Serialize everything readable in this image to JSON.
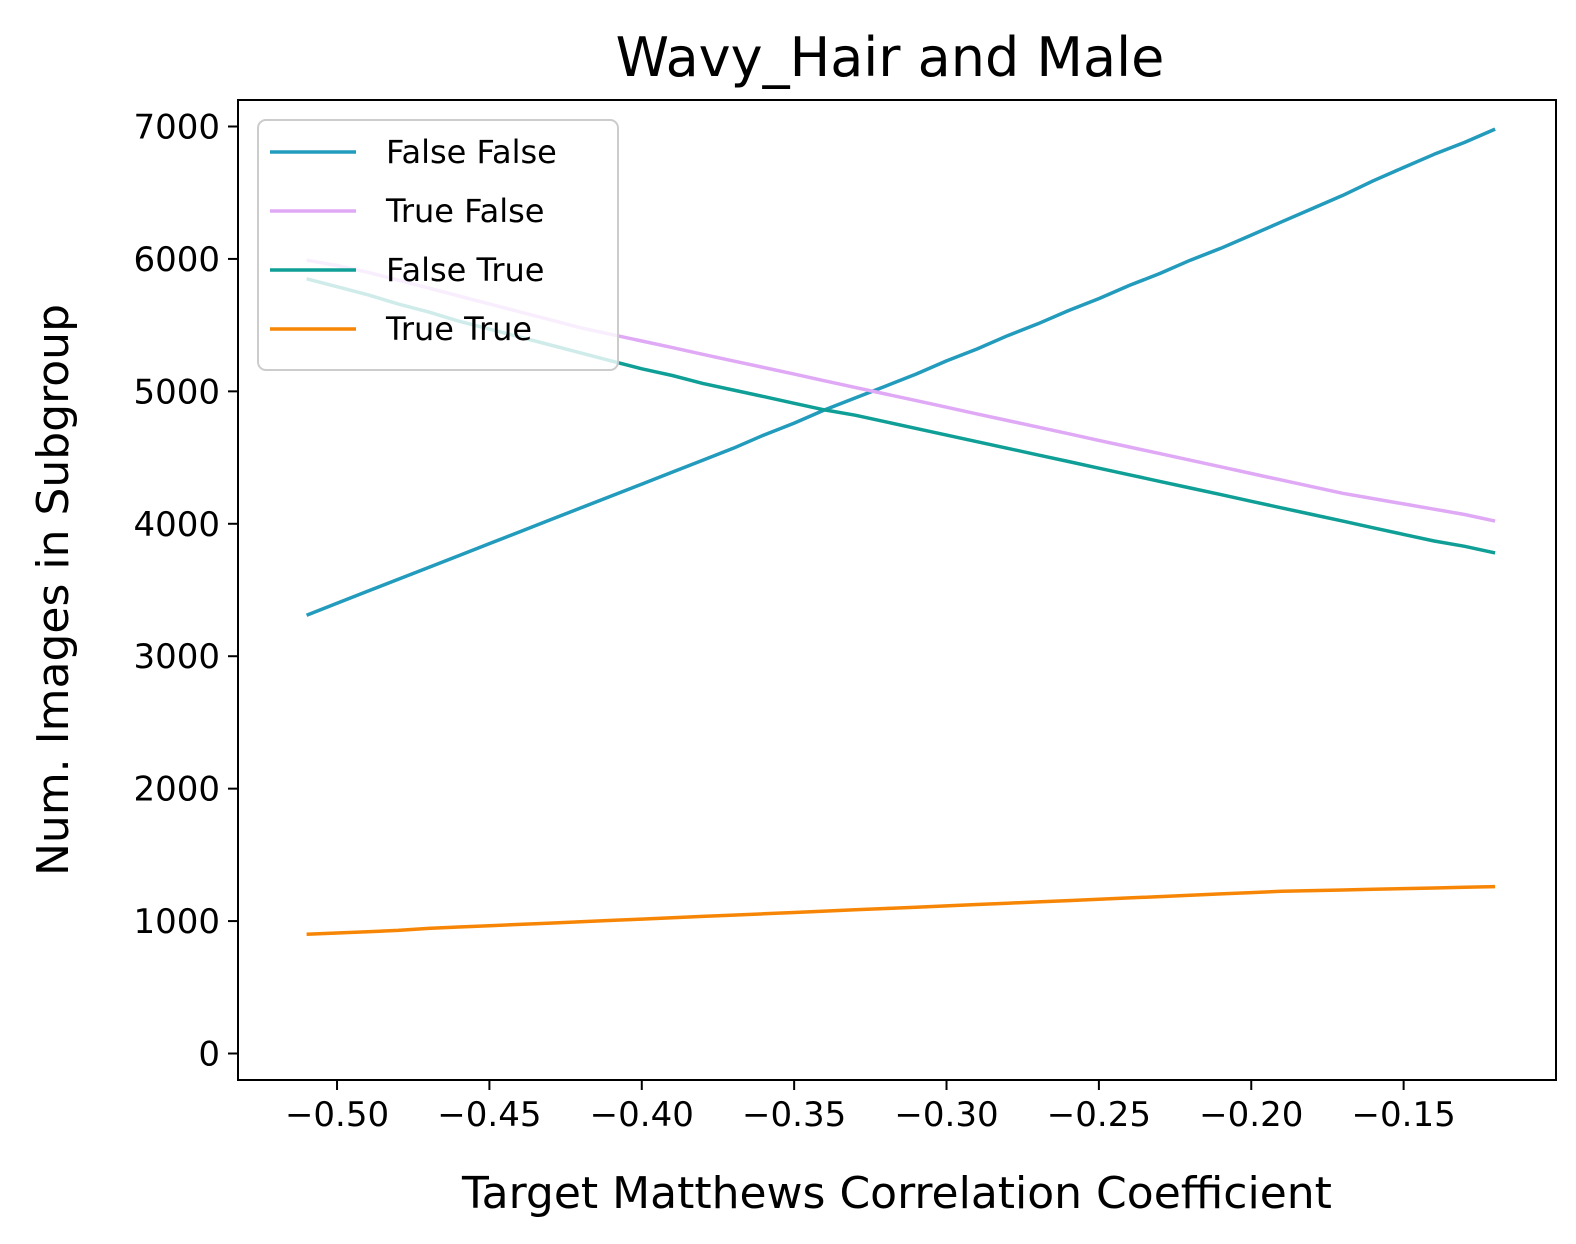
{
  "chart_data": {
    "type": "line",
    "title": "Wavy_Hair and Male",
    "xlabel": "Target Matthews Correlation Coefficient",
    "ylabel": "Num. Images in Subgroup",
    "xlim": [
      -0.5325,
      -0.1
    ],
    "ylim": [
      -200,
      7200
    ],
    "xticks": [
      -0.5,
      -0.45,
      -0.4,
      -0.35,
      -0.3,
      -0.25,
      -0.2,
      -0.15
    ],
    "xtick_labels": [
      "−0.50",
      "−0.45",
      "−0.40",
      "−0.35",
      "−0.30",
      "−0.25",
      "−0.20",
      "−0.15"
    ],
    "yticks": [
      0,
      1000,
      2000,
      3000,
      4000,
      5000,
      6000,
      7000
    ],
    "ytick_labels": [
      "0",
      "1000",
      "2000",
      "3000",
      "4000",
      "5000",
      "6000",
      "7000"
    ],
    "grid": false,
    "legend_position": "upper-left",
    "x": [
      -0.51,
      -0.5,
      -0.49,
      -0.48,
      -0.47,
      -0.46,
      -0.45,
      -0.44,
      -0.43,
      -0.42,
      -0.41,
      -0.4,
      -0.39,
      -0.38,
      -0.37,
      -0.36,
      -0.35,
      -0.34,
      -0.33,
      -0.32,
      -0.31,
      -0.3,
      -0.29,
      -0.28,
      -0.27,
      -0.26,
      -0.25,
      -0.24,
      -0.23,
      -0.22,
      -0.21,
      -0.2,
      -0.19,
      -0.18,
      -0.17,
      -0.16,
      -0.15,
      -0.14,
      -0.13,
      -0.12
    ],
    "series": [
      {
        "name": "False False",
        "color": "#229bbd",
        "values": [
          3310,
          3400,
          3490,
          3580,
          3670,
          3760,
          3850,
          3940,
          4030,
          4120,
          4210,
          4300,
          4390,
          4480,
          4570,
          4670,
          4760,
          4860,
          4950,
          5040,
          5130,
          5230,
          5320,
          5420,
          5510,
          5610,
          5700,
          5800,
          5890,
          5990,
          6080,
          6180,
          6280,
          6380,
          6480,
          6590,
          6690,
          6790,
          6880,
          6980
        ]
      },
      {
        "name": "True False",
        "color": "#e0a9f5",
        "values": [
          5990,
          5950,
          5900,
          5840,
          5780,
          5720,
          5660,
          5600,
          5540,
          5480,
          5430,
          5380,
          5330,
          5280,
          5230,
          5180,
          5130,
          5080,
          5030,
          4980,
          4930,
          4880,
          4830,
          4780,
          4730,
          4680,
          4630,
          4580,
          4530,
          4480,
          4430,
          4380,
          4330,
          4280,
          4230,
          4190,
          4150,
          4110,
          4070,
          4020
        ]
      },
      {
        "name": "False True",
        "color": "#0f9f97",
        "values": [
          5850,
          5790,
          5730,
          5660,
          5600,
          5530,
          5470,
          5410,
          5350,
          5290,
          5230,
          5170,
          5120,
          5060,
          5010,
          4960,
          4910,
          4860,
          4820,
          4770,
          4720,
          4670,
          4620,
          4570,
          4520,
          4470,
          4420,
          4370,
          4320,
          4270,
          4220,
          4170,
          4120,
          4070,
          4020,
          3970,
          3920,
          3870,
          3830,
          3780
        ]
      },
      {
        "name": "True True",
        "color": "#f78606",
        "values": [
          900,
          910,
          920,
          930,
          945,
          955,
          965,
          975,
          985,
          995,
          1005,
          1015,
          1025,
          1035,
          1045,
          1055,
          1065,
          1075,
          1085,
          1095,
          1105,
          1115,
          1125,
          1135,
          1145,
          1155,
          1165,
          1175,
          1185,
          1195,
          1205,
          1215,
          1225,
          1230,
          1235,
          1240,
          1245,
          1250,
          1255,
          1260
        ]
      }
    ]
  }
}
